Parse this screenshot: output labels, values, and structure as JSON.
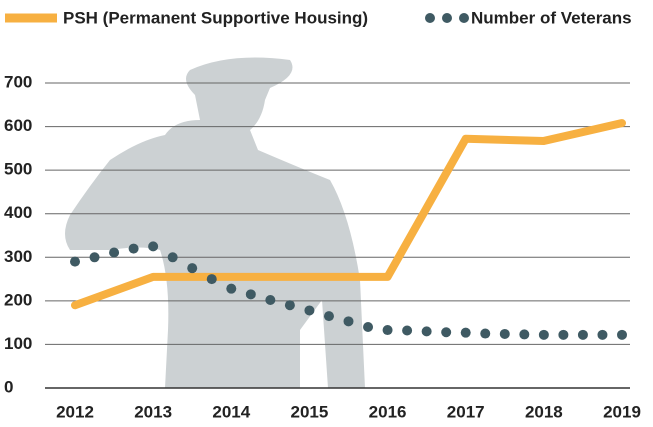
{
  "chart_data": {
    "type": "line",
    "series": [
      {
        "name": "PSH (Permanent Supportive Housing)",
        "color": "#f7b041",
        "style": "solid",
        "x": [
          2012,
          2013,
          2014,
          2015,
          2016,
          2017,
          2018,
          2019
        ],
        "values": [
          190,
          255,
          255,
          255,
          255,
          572,
          567,
          608
        ]
      },
      {
        "name": "Number of Veterans",
        "color": "#3f5a63",
        "style": "dotted",
        "x": [
          2012,
          2012.25,
          2012.5,
          2012.75,
          2013,
          2013.25,
          2013.5,
          2013.75,
          2014,
          2014.25,
          2014.5,
          2014.75,
          2015,
          2015.25,
          2015.5,
          2015.75,
          2016,
          2016.25,
          2016.5,
          2016.75,
          2017,
          2017.25,
          2017.5,
          2017.75,
          2018,
          2018.25,
          2018.5,
          2018.75,
          2019
        ],
        "values": [
          290,
          300,
          311,
          320,
          325,
          300,
          275,
          250,
          228,
          215,
          202,
          190,
          178,
          165,
          153,
          140,
          133,
          132,
          130,
          128,
          127,
          125,
          124,
          123,
          122,
          122,
          122,
          122,
          122
        ]
      }
    ],
    "xlim": [
      2012,
      2019
    ],
    "xticks": [
      2012,
      2013,
      2014,
      2015,
      2016,
      2017,
      2018,
      2019
    ],
    "ylim": [
      0,
      700
    ],
    "yticks": [
      0,
      100,
      200,
      300,
      400,
      500,
      600,
      700
    ],
    "grid": true
  }
}
